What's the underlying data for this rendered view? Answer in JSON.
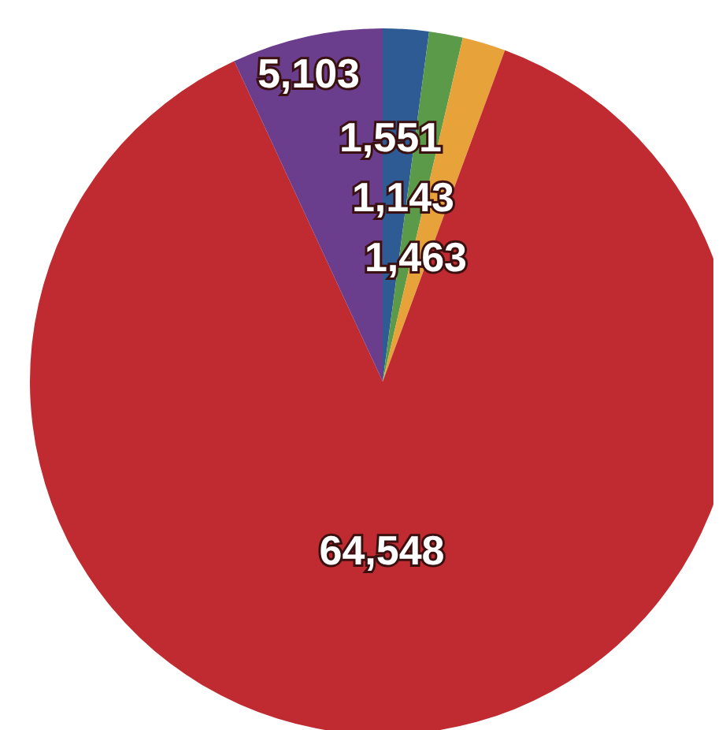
{
  "chart_data": {
    "type": "pie",
    "categories": [
      null,
      null,
      null,
      null,
      null
    ],
    "values": [
      1551,
      1143,
      1463,
      64548,
      5103
    ],
    "colors": [
      "#2e5b94",
      "#5a9a48",
      "#e8a23a",
      "#bf2b30",
      "#6a3e8c"
    ],
    "value_labels": [
      "1,551",
      "1,143",
      "1,463",
      "64,548",
      "5,103"
    ],
    "legend": false
  }
}
